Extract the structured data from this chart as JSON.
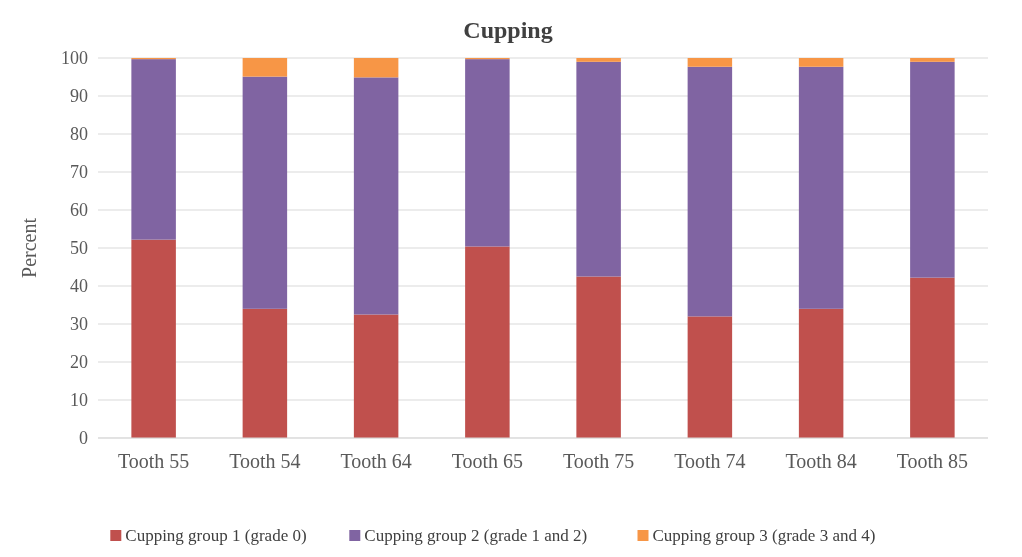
{
  "chart_data": {
    "type": "bar",
    "title": "Cupping",
    "ylabel": "Percent",
    "stacked": true,
    "grid": "y",
    "legend": "bottom",
    "categories": [
      "Tooth 55",
      "Tooth 54",
      "Tooth 64",
      "Tooth 65",
      "Tooth 75",
      "Tooth 74",
      "Tooth 84",
      "Tooth 85"
    ],
    "ylim": [
      0,
      100
    ],
    "yticks": [
      0,
      10,
      20,
      30,
      40,
      50,
      60,
      70,
      80,
      90,
      100
    ],
    "series": [
      {
        "name": "Cupping group 1 (grade 0)",
        "color": "#c0504d",
        "values": [
          52.2,
          34.0,
          32.5,
          50.4,
          42.5,
          32.0,
          34.0,
          42.2
        ]
      },
      {
        "name": "Cupping group 2 (grade 1 and 2)",
        "color": "#8064a2",
        "values": [
          47.5,
          61.1,
          62.4,
          49.3,
          56.5,
          65.7,
          63.7,
          56.8
        ]
      },
      {
        "name": "Cupping group 3 (grade 3 and 4)",
        "color": "#f79646",
        "values": [
          0.3,
          4.9,
          5.1,
          0.3,
          1.0,
          2.3,
          2.3,
          1.0
        ]
      }
    ]
  }
}
